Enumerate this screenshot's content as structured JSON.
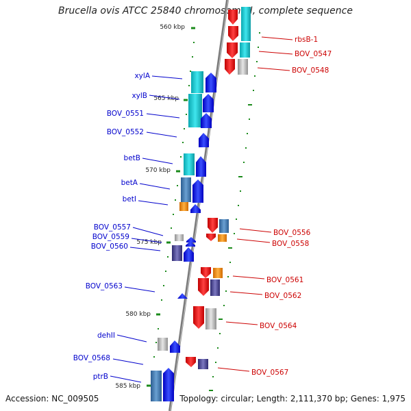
{
  "title": "Brucella ovis ATCC 25840 chromosome I, complete sequence",
  "footer": {
    "accession": "Accession: NC_009505",
    "summary": "Topology: circular; Length: 2,111,370 bp; Genes: 1,975"
  },
  "ticks": [
    "560 kbp",
    "565 kbp",
    "570 kbp",
    "575 kbp",
    "580 kbp",
    "585 kbp"
  ],
  "left_genes": [
    "xylA",
    "xylB",
    "BOV_0551",
    "BOV_0552",
    "betB",
    "betA",
    "betI",
    "BOV_0557",
    "BOV_0559",
    "BOV_0560",
    "BOV_0563",
    "dehII",
    "BOV_0568",
    "ptrB"
  ],
  "right_genes": [
    "rbsB-1",
    "BOV_0547",
    "BOV_0548",
    "BOV_0556",
    "BOV_0558",
    "BOV_0561",
    "BOV_0562",
    "BOV_0564",
    "BOV_0567"
  ],
  "colors": {
    "forward_label": "#0000cc",
    "reverse_label": "#cc0000",
    "forward_arrow": "#1010ee",
    "reverse_arrow": "#ee1010",
    "cyan": "#10c8d0",
    "steelblue": "#4a80b8",
    "orange": "#f08c10",
    "gray": "#b8b8b8",
    "slate": "#504c94",
    "tick": "#1a8a1a",
    "backbone": "#808080"
  }
}
